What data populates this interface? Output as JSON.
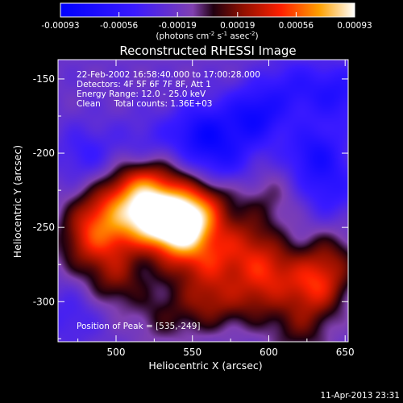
{
  "chart_data": {
    "type": "heatmap",
    "title": "Reconstructed RHESSI Image",
    "xlabel": "Heliocentric X (arcsec)",
    "ylabel": "Heliocentric Y (arcsec)",
    "xlim": [
      462,
      652
    ],
    "ylim": [
      -327,
      -137
    ],
    "x_ticks": [
      500,
      550,
      600,
      650
    ],
    "y_ticks": [
      -150,
      -200,
      -250,
      -300
    ],
    "colorbar": {
      "ticks": [
        "-0.00093",
        "-0.00056",
        "-0.00019",
        "0.00019",
        "0.00056",
        "0.00093"
      ],
      "range": [
        -0.00093,
        0.00093
      ],
      "unit_label": "(photons cm",
      "unit_sup1": "-2",
      "unit_mid": " s",
      "unit_sup2": "-1",
      "unit_end": " asec",
      "unit_sup3": "-2",
      "unit_close": ")"
    },
    "annotations": {
      "time": "22-Feb-2002 16:58:40.000 to 17:00:28.000",
      "detectors": "Detectors: 4F 5F 6F 7F 8F, Att 1",
      "energy": "Energy Range: 12.0 - 25.0 keV",
      "clean": "Clean     Total counts: 1.36E+03",
      "peak": "Position of Peak = [535,-249]"
    },
    "peak": [
      535,
      -249
    ],
    "blobs": [
      {
        "x": 535,
        "y": -249,
        "amp": 0.00093
      },
      {
        "x": 520,
        "y": -243,
        "amp": 0.00072
      },
      {
        "x": 548,
        "y": -245,
        "amp": 0.00065
      },
      {
        "x": 510,
        "y": -225,
        "amp": 0.00045
      },
      {
        "x": 488,
        "y": -242,
        "amp": 0.00046
      },
      {
        "x": 478,
        "y": -262,
        "amp": 0.00032
      },
      {
        "x": 500,
        "y": -258,
        "amp": 0.0003
      },
      {
        "x": 527,
        "y": -218,
        "amp": 0.00035
      },
      {
        "x": 560,
        "y": -230,
        "amp": 0.0003
      },
      {
        "x": 500,
        "y": -285,
        "amp": 0.00035
      },
      {
        "x": 540,
        "y": -270,
        "amp": 0.0003
      },
      {
        "x": 565,
        "y": -272,
        "amp": 0.0004
      },
      {
        "x": 585,
        "y": -258,
        "amp": 0.00032
      },
      {
        "x": 600,
        "y": -278,
        "amp": 0.00045
      },
      {
        "x": 630,
        "y": -290,
        "amp": 0.00055
      },
      {
        "x": 560,
        "y": -300,
        "amp": 0.00038
      },
      {
        "x": 590,
        "y": -298,
        "amp": 0.0003
      },
      {
        "x": 640,
        "y": -270,
        "amp": 0.0003
      },
      {
        "x": 620,
        "y": -318,
        "amp": 0.00028
      },
      {
        "x": 530,
        "y": -310,
        "amp": 0.00022
      },
      {
        "x": 600,
        "y": -230,
        "amp": 0.00018
      },
      {
        "x": 527,
        "y": -256,
        "amp": -0.0003
      },
      {
        "x": 555,
        "y": -186,
        "amp": -0.0005
      },
      {
        "x": 590,
        "y": -175,
        "amp": -0.00055
      },
      {
        "x": 570,
        "y": -205,
        "amp": -0.00035
      },
      {
        "x": 630,
        "y": -200,
        "amp": -0.00045
      },
      {
        "x": 645,
        "y": -160,
        "amp": -0.0004
      },
      {
        "x": 480,
        "y": -200,
        "amp": -0.00025
      },
      {
        "x": 520,
        "y": -195,
        "amp": -0.0002
      },
      {
        "x": 615,
        "y": -155,
        "amp": -0.0003
      },
      {
        "x": 470,
        "y": -310,
        "amp": -0.0002
      },
      {
        "x": 640,
        "y": -225,
        "amp": -0.0003
      }
    ],
    "background": -0.00022
  },
  "footer": {
    "timestamp": "11-Apr-2013 23:31"
  }
}
